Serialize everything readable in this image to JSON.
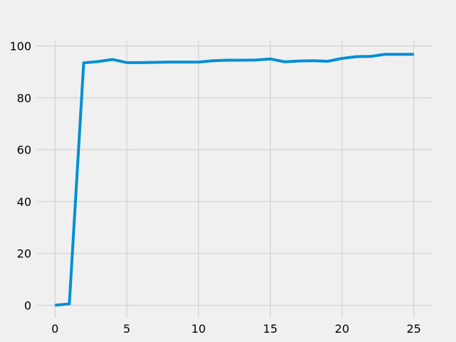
{
  "chart_data": {
    "type": "line",
    "title": "",
    "xlabel": "",
    "ylabel": "",
    "grid": true,
    "xlim": [
      -1.25,
      26.25
    ],
    "ylim": [
      -4.85,
      101.8
    ],
    "x_ticks": [
      0,
      5,
      10,
      15,
      20,
      25
    ],
    "y_ticks": [
      0,
      20,
      40,
      60,
      80,
      100
    ],
    "series": [
      {
        "color": "#008fd5",
        "x": [
          0,
          1,
          2,
          3,
          4,
          5,
          6,
          7,
          8,
          9,
          10,
          11,
          12,
          13,
          14,
          15,
          16,
          17,
          18,
          19,
          20,
          21,
          22,
          23,
          24,
          25
        ],
        "values": [
          0,
          0.5,
          93.5,
          94.0,
          94.8,
          93.6,
          93.6,
          93.7,
          93.8,
          93.8,
          93.8,
          94.3,
          94.5,
          94.5,
          94.6,
          95.0,
          93.9,
          94.2,
          94.3,
          94.1,
          95.2,
          95.9,
          96.0,
          96.8,
          96.8,
          96.8
        ]
      }
    ]
  }
}
